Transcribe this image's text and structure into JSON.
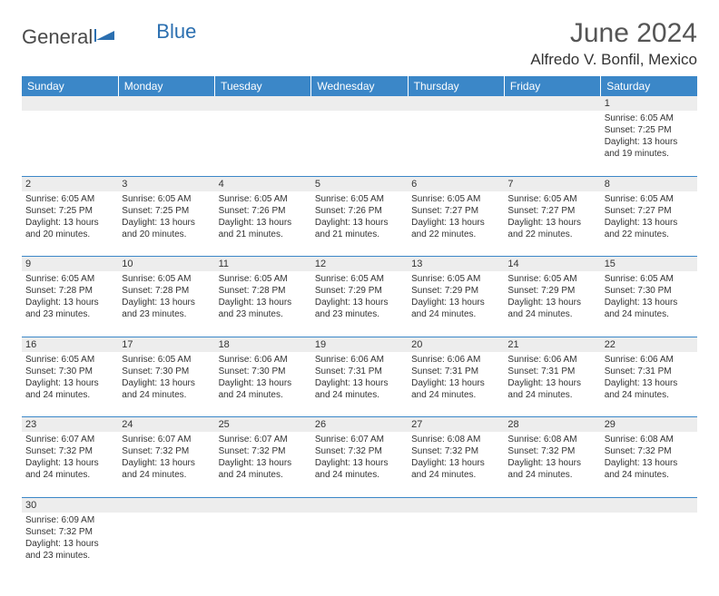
{
  "brand": {
    "part1": "General",
    "part2": "Blue"
  },
  "title": "June 2024",
  "location": "Alfredo V. Bonfil, Mexico",
  "colors": {
    "header_bg": "#3b87c8",
    "header_text": "#ffffff",
    "daynum_bg": "#ededed",
    "border": "#3b87c8",
    "brand_gray": "#4a4a4a",
    "brand_blue": "#2b6fb0"
  },
  "day_headers": [
    "Sunday",
    "Monday",
    "Tuesday",
    "Wednesday",
    "Thursday",
    "Friday",
    "Saturday"
  ],
  "weeks": [
    {
      "nums": [
        "",
        "",
        "",
        "",
        "",
        "",
        "1"
      ],
      "cells": [
        null,
        null,
        null,
        null,
        null,
        null,
        {
          "sunrise": "Sunrise: 6:05 AM",
          "sunset": "Sunset: 7:25 PM",
          "d1": "Daylight: 13 hours",
          "d2": "and 19 minutes."
        }
      ]
    },
    {
      "nums": [
        "2",
        "3",
        "4",
        "5",
        "6",
        "7",
        "8"
      ],
      "cells": [
        {
          "sunrise": "Sunrise: 6:05 AM",
          "sunset": "Sunset: 7:25 PM",
          "d1": "Daylight: 13 hours",
          "d2": "and 20 minutes."
        },
        {
          "sunrise": "Sunrise: 6:05 AM",
          "sunset": "Sunset: 7:25 PM",
          "d1": "Daylight: 13 hours",
          "d2": "and 20 minutes."
        },
        {
          "sunrise": "Sunrise: 6:05 AM",
          "sunset": "Sunset: 7:26 PM",
          "d1": "Daylight: 13 hours",
          "d2": "and 21 minutes."
        },
        {
          "sunrise": "Sunrise: 6:05 AM",
          "sunset": "Sunset: 7:26 PM",
          "d1": "Daylight: 13 hours",
          "d2": "and 21 minutes."
        },
        {
          "sunrise": "Sunrise: 6:05 AM",
          "sunset": "Sunset: 7:27 PM",
          "d1": "Daylight: 13 hours",
          "d2": "and 22 minutes."
        },
        {
          "sunrise": "Sunrise: 6:05 AM",
          "sunset": "Sunset: 7:27 PM",
          "d1": "Daylight: 13 hours",
          "d2": "and 22 minutes."
        },
        {
          "sunrise": "Sunrise: 6:05 AM",
          "sunset": "Sunset: 7:27 PM",
          "d1": "Daylight: 13 hours",
          "d2": "and 22 minutes."
        }
      ]
    },
    {
      "nums": [
        "9",
        "10",
        "11",
        "12",
        "13",
        "14",
        "15"
      ],
      "cells": [
        {
          "sunrise": "Sunrise: 6:05 AM",
          "sunset": "Sunset: 7:28 PM",
          "d1": "Daylight: 13 hours",
          "d2": "and 23 minutes."
        },
        {
          "sunrise": "Sunrise: 6:05 AM",
          "sunset": "Sunset: 7:28 PM",
          "d1": "Daylight: 13 hours",
          "d2": "and 23 minutes."
        },
        {
          "sunrise": "Sunrise: 6:05 AM",
          "sunset": "Sunset: 7:28 PM",
          "d1": "Daylight: 13 hours",
          "d2": "and 23 minutes."
        },
        {
          "sunrise": "Sunrise: 6:05 AM",
          "sunset": "Sunset: 7:29 PM",
          "d1": "Daylight: 13 hours",
          "d2": "and 23 minutes."
        },
        {
          "sunrise": "Sunrise: 6:05 AM",
          "sunset": "Sunset: 7:29 PM",
          "d1": "Daylight: 13 hours",
          "d2": "and 24 minutes."
        },
        {
          "sunrise": "Sunrise: 6:05 AM",
          "sunset": "Sunset: 7:29 PM",
          "d1": "Daylight: 13 hours",
          "d2": "and 24 minutes."
        },
        {
          "sunrise": "Sunrise: 6:05 AM",
          "sunset": "Sunset: 7:30 PM",
          "d1": "Daylight: 13 hours",
          "d2": "and 24 minutes."
        }
      ]
    },
    {
      "nums": [
        "16",
        "17",
        "18",
        "19",
        "20",
        "21",
        "22"
      ],
      "cells": [
        {
          "sunrise": "Sunrise: 6:05 AM",
          "sunset": "Sunset: 7:30 PM",
          "d1": "Daylight: 13 hours",
          "d2": "and 24 minutes."
        },
        {
          "sunrise": "Sunrise: 6:05 AM",
          "sunset": "Sunset: 7:30 PM",
          "d1": "Daylight: 13 hours",
          "d2": "and 24 minutes."
        },
        {
          "sunrise": "Sunrise: 6:06 AM",
          "sunset": "Sunset: 7:30 PM",
          "d1": "Daylight: 13 hours",
          "d2": "and 24 minutes."
        },
        {
          "sunrise": "Sunrise: 6:06 AM",
          "sunset": "Sunset: 7:31 PM",
          "d1": "Daylight: 13 hours",
          "d2": "and 24 minutes."
        },
        {
          "sunrise": "Sunrise: 6:06 AM",
          "sunset": "Sunset: 7:31 PM",
          "d1": "Daylight: 13 hours",
          "d2": "and 24 minutes."
        },
        {
          "sunrise": "Sunrise: 6:06 AM",
          "sunset": "Sunset: 7:31 PM",
          "d1": "Daylight: 13 hours",
          "d2": "and 24 minutes."
        },
        {
          "sunrise": "Sunrise: 6:06 AM",
          "sunset": "Sunset: 7:31 PM",
          "d1": "Daylight: 13 hours",
          "d2": "and 24 minutes."
        }
      ]
    },
    {
      "nums": [
        "23",
        "24",
        "25",
        "26",
        "27",
        "28",
        "29"
      ],
      "cells": [
        {
          "sunrise": "Sunrise: 6:07 AM",
          "sunset": "Sunset: 7:32 PM",
          "d1": "Daylight: 13 hours",
          "d2": "and 24 minutes."
        },
        {
          "sunrise": "Sunrise: 6:07 AM",
          "sunset": "Sunset: 7:32 PM",
          "d1": "Daylight: 13 hours",
          "d2": "and 24 minutes."
        },
        {
          "sunrise": "Sunrise: 6:07 AM",
          "sunset": "Sunset: 7:32 PM",
          "d1": "Daylight: 13 hours",
          "d2": "and 24 minutes."
        },
        {
          "sunrise": "Sunrise: 6:07 AM",
          "sunset": "Sunset: 7:32 PM",
          "d1": "Daylight: 13 hours",
          "d2": "and 24 minutes."
        },
        {
          "sunrise": "Sunrise: 6:08 AM",
          "sunset": "Sunset: 7:32 PM",
          "d1": "Daylight: 13 hours",
          "d2": "and 24 minutes."
        },
        {
          "sunrise": "Sunrise: 6:08 AM",
          "sunset": "Sunset: 7:32 PM",
          "d1": "Daylight: 13 hours",
          "d2": "and 24 minutes."
        },
        {
          "sunrise": "Sunrise: 6:08 AM",
          "sunset": "Sunset: 7:32 PM",
          "d1": "Daylight: 13 hours",
          "d2": "and 24 minutes."
        }
      ]
    },
    {
      "nums": [
        "30",
        "",
        "",
        "",
        "",
        "",
        ""
      ],
      "cells": [
        {
          "sunrise": "Sunrise: 6:09 AM",
          "sunset": "Sunset: 7:32 PM",
          "d1": "Daylight: 13 hours",
          "d2": "and 23 minutes."
        },
        null,
        null,
        null,
        null,
        null,
        null
      ]
    }
  ]
}
